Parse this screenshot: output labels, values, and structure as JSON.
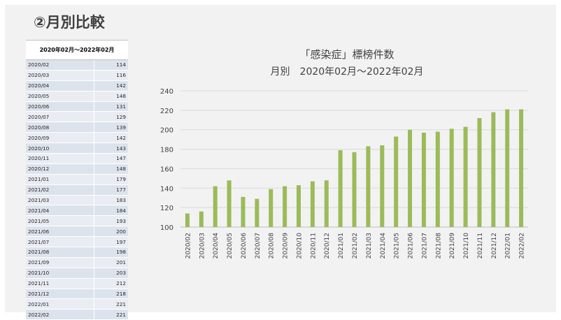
{
  "heading": "②月別比較",
  "table": {
    "header": "2020年02月～2022年02月",
    "rows": [
      {
        "month": "2020/02",
        "value": "114"
      },
      {
        "month": "2020/03",
        "value": "116"
      },
      {
        "month": "2020/04",
        "value": "142"
      },
      {
        "month": "2020/05",
        "value": "148"
      },
      {
        "month": "2020/06",
        "value": "131"
      },
      {
        "month": "2020/07",
        "value": "129"
      },
      {
        "month": "2020/08",
        "value": "139"
      },
      {
        "month": "2020/09",
        "value": "142"
      },
      {
        "month": "2020/10",
        "value": "143"
      },
      {
        "month": "2020/11",
        "value": "147"
      },
      {
        "month": "2020/12",
        "value": "148"
      },
      {
        "month": "2021/01",
        "value": "179"
      },
      {
        "month": "2021/02",
        "value": "177"
      },
      {
        "month": "2021/03",
        "value": "183"
      },
      {
        "month": "2021/04",
        "value": "184"
      },
      {
        "month": "2021/05",
        "value": "193"
      },
      {
        "month": "2021/06",
        "value": "200"
      },
      {
        "month": "2021/07",
        "value": "197"
      },
      {
        "month": "2021/08",
        "value": "198"
      },
      {
        "month": "2021/09",
        "value": "201"
      },
      {
        "month": "2021/10",
        "value": "203"
      },
      {
        "month": "2021/11",
        "value": "212"
      },
      {
        "month": "2021/12",
        "value": "218"
      },
      {
        "month": "2022/01",
        "value": "221"
      },
      {
        "month": "2022/02",
        "value": "221"
      }
    ]
  },
  "chart_data": {
    "type": "bar",
    "title": "「感染症」標榜件数",
    "subtitle": "月別　2020年02月～2022年02月",
    "categories": [
      "2020/02",
      "2020/03",
      "2020/04",
      "2020/05",
      "2020/06",
      "2020/07",
      "2020/08",
      "2020/09",
      "2020/10",
      "2020/11",
      "2020/12",
      "2021/01",
      "2021/02",
      "2021/03",
      "2021/04",
      "2021/05",
      "2021/06",
      "2021/07",
      "2021/08",
      "2021/09",
      "2021/10",
      "2021/11",
      "2021/12",
      "2022/01",
      "2022/02"
    ],
    "values": [
      114,
      116,
      142,
      148,
      131,
      129,
      139,
      142,
      143,
      147,
      148,
      179,
      177,
      183,
      184,
      193,
      200,
      197,
      198,
      201,
      203,
      212,
      218,
      221,
      221
    ],
    "ylim": [
      100,
      240
    ],
    "yticks": [
      100,
      120,
      140,
      160,
      180,
      200,
      220,
      240
    ],
    "grid": true,
    "bar_color": "#9bbb59"
  }
}
